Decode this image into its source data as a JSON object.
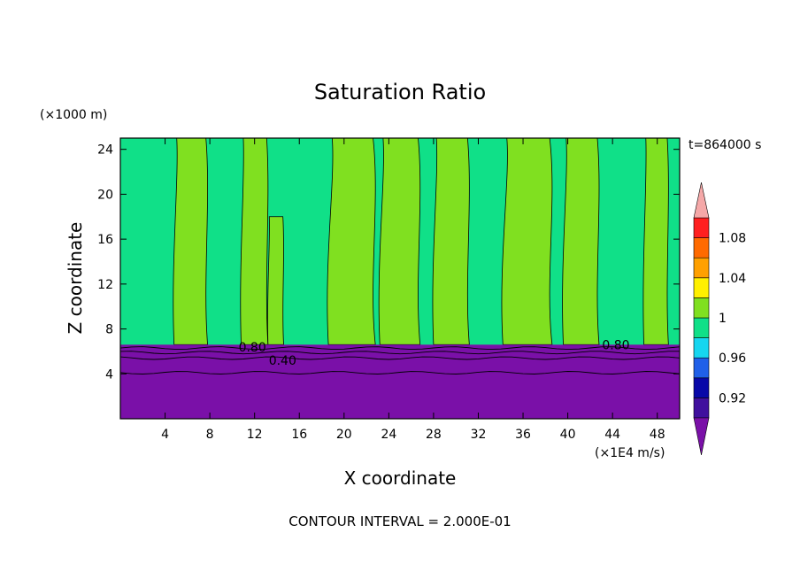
{
  "chart_data": {
    "type": "heatmap",
    "title": "Saturation Ratio",
    "xlabel": "X coordinate",
    "ylabel": "Z coordinate",
    "x_unit": "(×1E4 m/s)",
    "y_unit": "(×1000 m)",
    "time_label": "t=864000 s",
    "footer": "CONTOUR INTERVAL = 2.000E-01",
    "xlim": [
      0,
      50
    ],
    "ylim": [
      0,
      25
    ],
    "x_ticks": [
      4,
      8,
      12,
      16,
      20,
      24,
      28,
      32,
      36,
      40,
      44,
      48
    ],
    "y_ticks": [
      4,
      8,
      12,
      16,
      20,
      24
    ],
    "contour_labels": [
      {
        "text": "0.80",
        "x": 11.8,
        "z": 6.4
      },
      {
        "text": "0.40",
        "x": 14.5,
        "z": 5.2
      },
      {
        "text": "0.80",
        "x": 44.3,
        "z": 6.6
      }
    ],
    "colorbar": {
      "tick_labels": [
        "1.08",
        "1.04",
        "1",
        "0.96",
        "0.92"
      ],
      "levels": [
        0.9,
        0.92,
        0.94,
        0.96,
        0.98,
        1.0,
        1.02,
        1.04,
        1.06,
        1.08,
        1.1
      ],
      "colors": [
        "#40109e",
        "#0808a8",
        "#2060e8",
        "#16d6f0",
        "#10e088",
        "#80e020",
        "#fff000",
        "#ffa000",
        "#ff6a00",
        "#ff2020"
      ],
      "under_color": "#7a10a8",
      "over_color": "#f5a8a8"
    },
    "fields": {
      "lower_layer_color": "#7a10a8",
      "upper_layer_color": "#10e088",
      "plume_color": "#80e020",
      "layer_top_z": 6.6,
      "plumes": [
        {
          "x0": 4.8,
          "x1": 7.8,
          "z_top": 25
        },
        {
          "x0": 10.8,
          "x1": 13.2,
          "z_top": 25
        },
        {
          "x0": 13.2,
          "x1": 14.6,
          "z_top": 18
        },
        {
          "x0": 18.6,
          "x1": 22.8,
          "z_top": 25
        },
        {
          "x0": 23.2,
          "x1": 26.8,
          "z_top": 25
        },
        {
          "x0": 28.0,
          "x1": 31.2,
          "z_top": 25
        },
        {
          "x0": 34.2,
          "x1": 38.6,
          "z_top": 25
        },
        {
          "x0": 39.6,
          "x1": 42.8,
          "z_top": 25
        },
        {
          "x0": 46.8,
          "x1": 49.0,
          "z_top": 25
        }
      ]
    }
  }
}
